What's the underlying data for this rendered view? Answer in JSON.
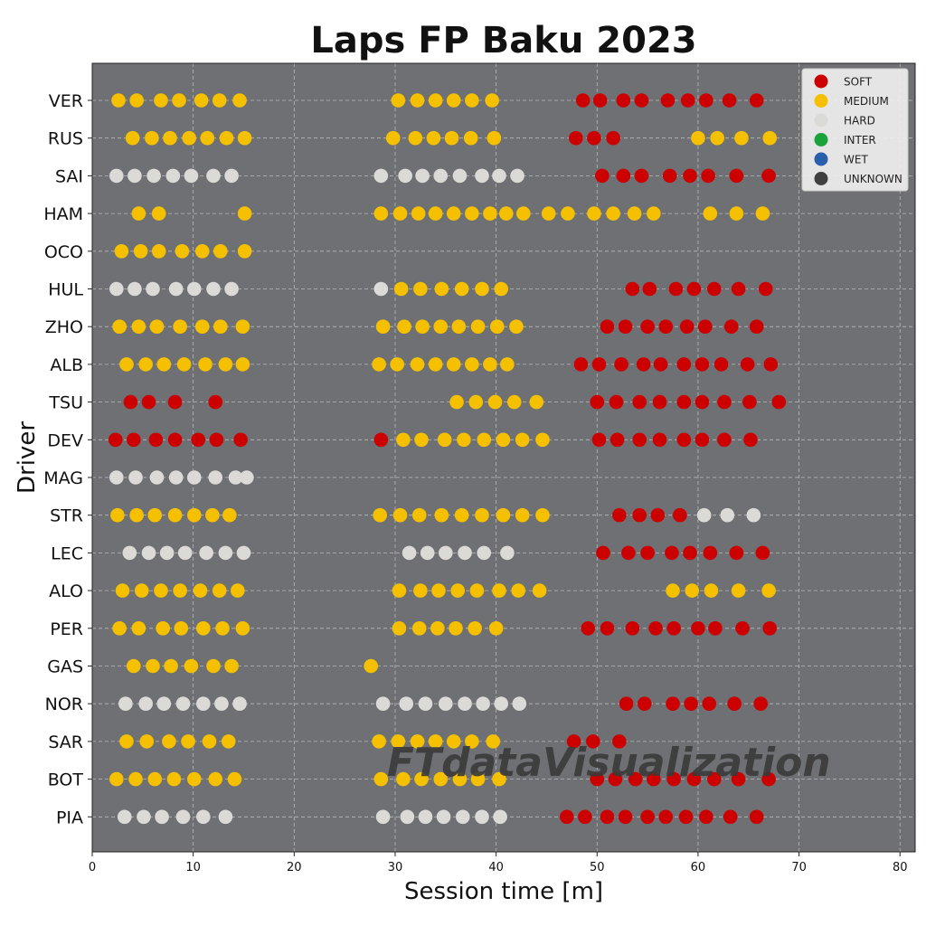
{
  "chart_data": {
    "type": "scatter",
    "title": "Laps FP Baku 2023",
    "xlabel": "Session time [m]",
    "ylabel": "Driver",
    "xlim": [
      0,
      81.5
    ],
    "xticks": [
      0,
      10,
      20,
      30,
      40,
      50,
      60,
      70,
      80
    ],
    "grid": true,
    "legend_position": "top-right",
    "watermark": "FTdataVisualization",
    "colors": {
      "background": "#6e7074",
      "grid": "#b8babd",
      "SOFT": "#cc0000",
      "MEDIUM": "#f5c000",
      "HARD": "#dcdad6",
      "INTER": "#1aa33a",
      "WET": "#2a5fae",
      "UNKNOWN": "#404040"
    },
    "legend": [
      "SOFT",
      "MEDIUM",
      "HARD",
      "INTER",
      "WET",
      "UNKNOWN"
    ],
    "drivers": [
      {
        "name": "VER",
        "laps": [
          {
            "compound": "MEDIUM",
            "times": [
              2.6,
              4.4,
              6.8,
              8.6,
              10.8,
              12.6,
              14.6
            ]
          },
          {
            "compound": "MEDIUM",
            "times": [
              30.3,
              32.2,
              34.0,
              35.8,
              37.6,
              39.6
            ]
          },
          {
            "compound": "SOFT",
            "times": [
              48.6,
              50.3,
              52.6,
              54.4,
              57.0,
              59.0,
              60.8,
              63.1,
              65.8
            ]
          }
        ]
      },
      {
        "name": "RUS",
        "laps": [
          {
            "compound": "MEDIUM",
            "times": [
              4.0,
              5.9,
              7.7,
              9.6,
              11.4,
              13.3,
              15.1
            ]
          },
          {
            "compound": "MEDIUM",
            "times": [
              29.8,
              32.0,
              33.8,
              35.6,
              37.5,
              39.8
            ]
          },
          {
            "compound": "SOFT",
            "times": [
              47.9,
              49.7,
              51.6
            ]
          },
          {
            "compound": "MEDIUM",
            "times": [
              60.0,
              61.9,
              64.3,
              67.1
            ]
          }
        ]
      },
      {
        "name": "SAI",
        "laps": [
          {
            "compound": "HARD",
            "times": [
              2.4,
              4.2,
              6.1,
              8.0,
              9.8,
              12.0,
              13.8
            ]
          },
          {
            "compound": "HARD",
            "times": [
              28.6,
              31.0,
              32.7,
              34.5,
              36.4,
              38.6,
              40.3,
              42.1
            ]
          },
          {
            "compound": "SOFT",
            "times": [
              50.5,
              52.6,
              54.4,
              57.2,
              59.2,
              61.0,
              63.8,
              67.0
            ]
          }
        ]
      },
      {
        "name": "HAM",
        "laps": [
          {
            "compound": "MEDIUM",
            "times": [
              4.6,
              6.6,
              15.1
            ]
          },
          {
            "compound": "MEDIUM",
            "times": [
              28.6,
              30.5,
              32.3,
              34.0,
              35.8,
              37.6,
              39.4,
              41.0,
              42.7,
              45.2,
              47.1,
              49.7,
              51.6,
              53.7,
              55.6,
              61.2,
              63.8,
              66.4
            ]
          }
        ]
      },
      {
        "name": "OCO",
        "laps": [
          {
            "compound": "MEDIUM",
            "times": [
              2.9,
              4.8,
              6.6,
              8.9,
              10.9,
              12.7,
              15.1
            ]
          }
        ]
      },
      {
        "name": "HUL",
        "laps": [
          {
            "compound": "HARD",
            "times": [
              2.4,
              4.2,
              6.0,
              8.3,
              10.1,
              12.0,
              13.8
            ]
          },
          {
            "compound": "HARD",
            "times": [
              28.6
            ]
          },
          {
            "compound": "MEDIUM",
            "times": [
              30.6,
              32.5,
              34.6,
              36.6,
              38.6,
              40.5
            ]
          },
          {
            "compound": "SOFT",
            "times": [
              53.5,
              55.2,
              57.8,
              59.6,
              61.6,
              64.0,
              66.7
            ]
          }
        ]
      },
      {
        "name": "ZHO",
        "laps": [
          {
            "compound": "MEDIUM",
            "times": [
              2.7,
              4.6,
              6.4,
              8.7,
              10.9,
              12.7,
              14.9
            ]
          },
          {
            "compound": "MEDIUM",
            "times": [
              28.8,
              30.9,
              32.7,
              34.5,
              36.3,
              38.2,
              40.1,
              42.0
            ]
          },
          {
            "compound": "SOFT",
            "times": [
              51.0,
              52.8,
              55.0,
              56.8,
              58.9,
              60.7,
              63.3,
              65.8
            ]
          }
        ]
      },
      {
        "name": "ALB",
        "laps": [
          {
            "compound": "MEDIUM",
            "times": [
              3.4,
              5.3,
              7.1,
              9.1,
              11.2,
              13.2,
              14.9
            ]
          },
          {
            "compound": "MEDIUM",
            "times": [
              28.4,
              30.2,
              32.2,
              34.0,
              35.8,
              37.6,
              39.4,
              41.1
            ]
          },
          {
            "compound": "SOFT",
            "times": [
              48.4,
              50.2,
              52.4,
              54.6,
              56.3,
              58.6,
              60.4,
              62.3,
              64.9,
              67.2
            ]
          }
        ]
      },
      {
        "name": "TSU",
        "laps": [
          {
            "compound": "SOFT",
            "times": [
              3.8,
              5.6,
              8.2,
              12.2
            ]
          },
          {
            "compound": "MEDIUM",
            "times": [
              36.1,
              38.0,
              39.9,
              41.8,
              44.0
            ]
          },
          {
            "compound": "SOFT",
            "times": [
              50.0,
              51.9,
              54.2,
              56.2,
              58.6,
              60.4,
              62.6,
              65.1,
              68.0
            ]
          }
        ]
      },
      {
        "name": "DEV",
        "laps": [
          {
            "compound": "SOFT",
            "times": [
              2.3,
              4.1,
              6.3,
              8.2,
              10.5,
              12.3,
              14.7
            ]
          },
          {
            "compound": "SOFT",
            "times": [
              28.6
            ]
          },
          {
            "compound": "MEDIUM",
            "times": [
              30.8,
              32.6,
              34.9,
              36.8,
              38.8,
              40.7,
              42.6,
              44.6
            ]
          },
          {
            "compound": "SOFT",
            "times": [
              50.2,
              52.0,
              54.2,
              56.2,
              58.6,
              60.4,
              62.6,
              65.2
            ]
          }
        ]
      },
      {
        "name": "MAG",
        "laps": [
          {
            "compound": "HARD",
            "times": [
              2.4,
              4.3,
              6.4,
              8.3,
              10.1,
              12.2,
              14.2,
              15.3
            ]
          }
        ]
      },
      {
        "name": "STR",
        "laps": [
          {
            "compound": "MEDIUM",
            "times": [
              2.5,
              4.4,
              6.2,
              8.2,
              10.1,
              11.9,
              13.6
            ]
          },
          {
            "compound": "MEDIUM",
            "times": [
              28.5,
              30.5,
              32.4,
              34.6,
              36.6,
              38.6,
              40.7,
              42.6,
              44.6
            ]
          },
          {
            "compound": "SOFT",
            "times": [
              52.2,
              54.2,
              56.0,
              58.2
            ]
          },
          {
            "compound": "HARD",
            "times": [
              60.6,
              62.9,
              65.5
            ]
          }
        ]
      },
      {
        "name": "LEC",
        "laps": [
          {
            "compound": "HARD",
            "times": [
              3.7,
              5.6,
              7.4,
              9.2,
              11.3,
              13.2,
              15.0
            ]
          },
          {
            "compound": "HARD",
            "times": [
              31.4,
              33.2,
              35.0,
              36.9,
              38.8,
              41.1
            ]
          },
          {
            "compound": "SOFT",
            "times": [
              50.6,
              53.1,
              55.0,
              57.4,
              59.2,
              61.2,
              63.8,
              66.4
            ]
          }
        ]
      },
      {
        "name": "ALO",
        "laps": [
          {
            "compound": "MEDIUM",
            "times": [
              3.0,
              4.9,
              6.8,
              8.7,
              10.7,
              12.6,
              14.4
            ]
          },
          {
            "compound": "MEDIUM",
            "times": [
              30.4,
              32.5,
              34.3,
              36.2,
              38.1,
              40.3,
              42.2,
              44.3
            ]
          },
          {
            "compound": "MEDIUM",
            "times": [
              57.5,
              59.4,
              61.3,
              64.0,
              67.0
            ]
          }
        ]
      },
      {
        "name": "PER",
        "laps": [
          {
            "compound": "MEDIUM",
            "times": [
              2.7,
              4.6,
              7.0,
              8.8,
              11.0,
              12.9,
              14.9
            ]
          },
          {
            "compound": "MEDIUM",
            "times": [
              30.4,
              32.4,
              34.2,
              36.0,
              37.9,
              40.0
            ]
          },
          {
            "compound": "SOFT",
            "times": [
              49.1,
              51.0,
              53.5,
              55.8,
              57.6,
              60.0,
              61.7,
              64.4,
              67.1
            ]
          }
        ]
      },
      {
        "name": "GAS",
        "laps": [
          {
            "compound": "MEDIUM",
            "times": [
              4.1,
              6.0,
              7.8,
              9.8,
              12.0,
              13.8
            ]
          },
          {
            "compound": "MEDIUM",
            "times": [
              27.6
            ]
          }
        ]
      },
      {
        "name": "NOR",
        "laps": [
          {
            "compound": "HARD",
            "times": [
              3.3,
              5.3,
              7.1,
              9.0,
              11.0,
              12.8,
              14.6
            ]
          },
          {
            "compound": "HARD",
            "times": [
              28.8,
              31.1,
              33.0,
              35.0,
              36.9,
              38.7,
              40.5,
              42.3
            ]
          },
          {
            "compound": "SOFT",
            "times": [
              52.9,
              54.7,
              57.5,
              59.3,
              61.1,
              63.6,
              66.2
            ]
          }
        ]
      },
      {
        "name": "SAR",
        "laps": [
          {
            "compound": "MEDIUM",
            "times": [
              3.4,
              5.4,
              7.6,
              9.5,
              11.6,
              13.5
            ]
          },
          {
            "compound": "MEDIUM",
            "times": [
              28.4,
              30.3,
              32.2,
              34.0,
              35.8,
              37.6,
              39.7
            ]
          },
          {
            "compound": "SOFT",
            "times": [
              47.7,
              49.6,
              52.2
            ]
          }
        ]
      },
      {
        "name": "BOT",
        "laps": [
          {
            "compound": "MEDIUM",
            "times": [
              2.4,
              4.3,
              6.2,
              8.1,
              10.1,
              12.2,
              14.1
            ]
          },
          {
            "compound": "MEDIUM",
            "times": [
              28.6,
              30.8,
              32.6,
              34.5,
              36.4,
              38.2,
              40.3
            ]
          },
          {
            "compound": "SOFT",
            "times": [
              50.0,
              51.8,
              53.8,
              55.6,
              57.6,
              59.6,
              61.6,
              64.0,
              67.0
            ]
          }
        ]
      },
      {
        "name": "PIA",
        "laps": [
          {
            "compound": "HARD",
            "times": [
              3.2,
              5.1,
              6.9,
              9.0,
              11.0,
              13.2
            ]
          },
          {
            "compound": "HARD",
            "times": [
              28.8,
              31.2,
              33.0,
              34.8,
              36.7,
              38.6,
              40.4
            ]
          },
          {
            "compound": "SOFT",
            "times": [
              47.0,
              48.8,
              51.0,
              52.8,
              55.0,
              56.8,
              58.8,
              60.8,
              63.2,
              65.8
            ]
          }
        ]
      }
    ]
  }
}
